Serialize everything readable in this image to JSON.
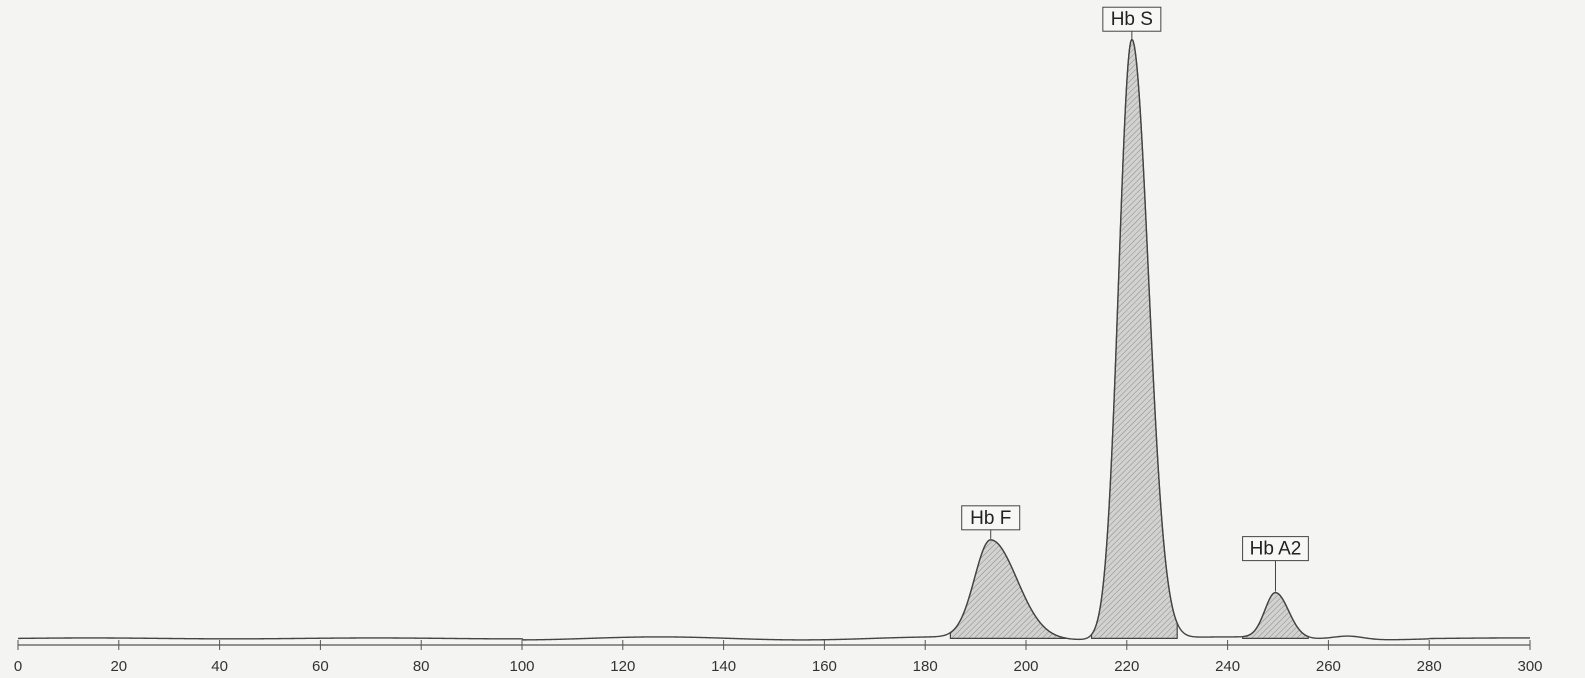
{
  "chart_data": {
    "type": "line",
    "title": "",
    "xlabel": "",
    "ylabel": "",
    "xlim": [
      0,
      300
    ],
    "ylim": [
      0,
      100
    ],
    "grid": false,
    "x_ticks": [
      0,
      20,
      40,
      60,
      80,
      100,
      120,
      140,
      160,
      180,
      200,
      220,
      240,
      260,
      280,
      300
    ],
    "baseline": 0.6,
    "peaks": [
      {
        "label": "Hb F",
        "center": 193,
        "height": 16.3,
        "width_left": 3.2,
        "width_right": 5.2,
        "fill_from": 185,
        "fill_to": 208
      },
      {
        "label": "Hb S",
        "center": 221,
        "height": 100,
        "width_left": 2.6,
        "width_right": 3.3,
        "fill_from": 213,
        "fill_to": 230
      },
      {
        "label": "Hb A2",
        "center": 249.5,
        "height": 7.5,
        "width_left": 2.1,
        "width_right": 2.6,
        "fill_from": 243,
        "fill_to": 256
      }
    ],
    "minor_bumps": [
      {
        "center": 264,
        "height": 0.6,
        "width": 3
      }
    ]
  }
}
